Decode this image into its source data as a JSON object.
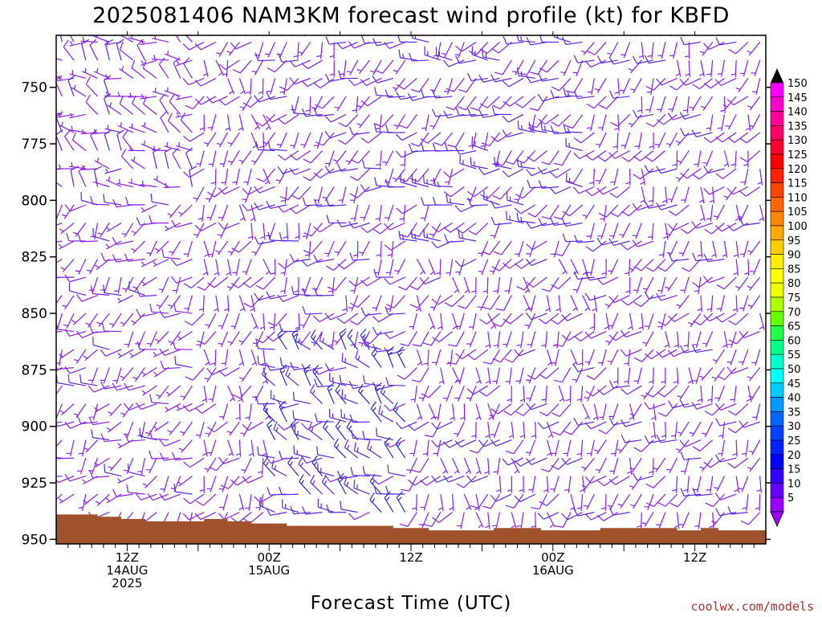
{
  "chart_data": {
    "type": "wind-barb-time-height",
    "title": "2025081406 NAM3KM forecast wind profile (kt) for KBFD",
    "xlabel": "Forecast Time (UTC)",
    "credit": "coolwx.com/models",
    "x_ticks": [
      {
        "hours": 6,
        "lines": [
          "12Z",
          "14AUG",
          "2025"
        ]
      },
      {
        "hours": 18,
        "lines": [
          "00Z",
          "15AUG"
        ]
      },
      {
        "hours": 30,
        "lines": [
          "12Z"
        ]
      },
      {
        "hours": 42,
        "lines": [
          "00Z",
          "16AUG"
        ]
      },
      {
        "hours": 54,
        "lines": [
          "12Z"
        ]
      }
    ],
    "xlim_hours": [
      0,
      60
    ],
    "y_ticks": [
      750,
      775,
      800,
      825,
      850,
      875,
      900,
      925,
      950
    ],
    "ylim_hPa": [
      952,
      727
    ],
    "terrain_hPa": [
      {
        "h": 0.0,
        "p": 939
      },
      {
        "h": 1.0,
        "p": 939
      },
      {
        "h": 3.5,
        "p": 940
      },
      {
        "h": 5.5,
        "p": 941
      },
      {
        "h": 7.5,
        "p": 942
      },
      {
        "h": 9.5,
        "p": 942
      },
      {
        "h": 12.5,
        "p": 941
      },
      {
        "h": 14.5,
        "p": 942
      },
      {
        "h": 16.5,
        "p": 943
      },
      {
        "h": 19.5,
        "p": 944
      },
      {
        "h": 28.5,
        "p": 945
      },
      {
        "h": 31.5,
        "p": 946
      },
      {
        "h": 37.0,
        "p": 945
      },
      {
        "h": 41.0,
        "p": 946
      },
      {
        "h": 46.0,
        "p": 945
      },
      {
        "h": 52.5,
        "p": 946
      },
      {
        "h": 54.5,
        "p": 945
      },
      {
        "h": 56.0,
        "p": 946
      },
      {
        "h": 60.0,
        "p": 946
      }
    ],
    "colorbar": {
      "unit": "kt",
      "ticks": [
        150,
        145,
        140,
        135,
        130,
        125,
        120,
        115,
        110,
        105,
        100,
        95,
        90,
        85,
        80,
        75,
        70,
        65,
        60,
        55,
        50,
        45,
        40,
        35,
        30,
        25,
        20,
        15,
        10,
        5
      ],
      "colors": [
        "#ff00ff",
        "#ff00cc",
        "#ff0099",
        "#ff0066",
        "#ff0033",
        "#ff0000",
        "#ff2200",
        "#ff4400",
        "#ff6600",
        "#ff8800",
        "#ffaa00",
        "#ffcc00",
        "#ffee00",
        "#ffff00",
        "#eeff00",
        "#aaff00",
        "#66ff00",
        "#22ff44",
        "#00ff88",
        "#00ffcc",
        "#00ffff",
        "#00ccff",
        "#0099ff",
        "#0066ff",
        "#0044ff",
        "#0022ff",
        "#0000ff",
        "#3300ff",
        "#6600ff",
        "#9900ff"
      ],
      "arrow_color": "#000000"
    },
    "barb_colors": {
      "le10": "#8c1cf2",
      "le15": "#5a26e8",
      "gt15": "#1e2ad2"
    },
    "barb_rows_hPa": [
      730,
      738,
      746,
      754,
      762,
      770,
      778,
      786,
      794,
      802,
      810,
      818,
      826,
      834,
      842,
      850,
      858,
      866,
      874,
      882,
      890,
      898,
      906,
      914,
      922,
      930,
      938,
      946
    ],
    "barb_step_hours": 1,
    "wind_regimes": [
      {
        "h0": 0,
        "h1": 12,
        "p0": 727,
        "p1": 800,
        "dir": 300,
        "spd": 7
      },
      {
        "h0": 0,
        "h1": 12,
        "p0": 800,
        "p1": 952,
        "dir": 240,
        "spd": 7
      },
      {
        "h0": 12,
        "h1": 18,
        "p0": 727,
        "p1": 952,
        "dir": 200,
        "spd": 6
      },
      {
        "h0": 18,
        "h1": 30,
        "p0": 727,
        "p1": 860,
        "dir": 225,
        "spd": 8
      },
      {
        "h0": 18,
        "h1": 30,
        "p0": 860,
        "p1": 952,
        "dir": 290,
        "spd": 13
      },
      {
        "h0": 30,
        "h1": 45,
        "p0": 727,
        "p1": 820,
        "dir": 240,
        "spd": 10
      },
      {
        "h0": 30,
        "h1": 45,
        "p0": 820,
        "p1": 952,
        "dir": 200,
        "spd": 7
      },
      {
        "h0": 45,
        "h1": 60,
        "p0": 727,
        "p1": 952,
        "dir": 215,
        "spd": 7
      }
    ]
  }
}
